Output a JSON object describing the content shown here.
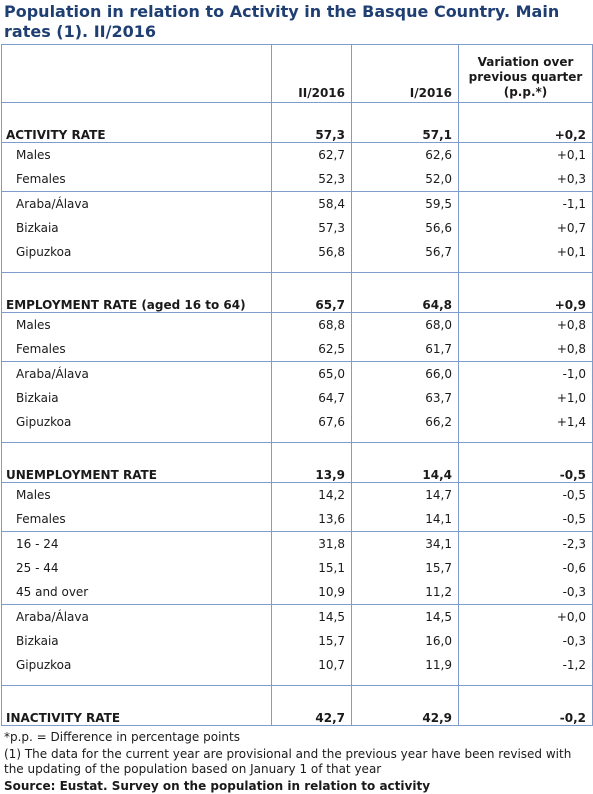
{
  "title": "Population in relation to Activity in the Basque Country. Main rates (1). II/2016",
  "columns": [
    "",
    "II/2016",
    "I/2016",
    "Variation over previous quarter (p.p.*)"
  ],
  "sections": [
    {
      "header": {
        "label": "ACTIVITY RATE",
        "c1": "57,3",
        "c2": "57,1",
        "c3": "+0,2"
      },
      "groups": [
        [
          {
            "label": "Males",
            "c1": "62,7",
            "c2": "62,6",
            "c3": "+0,1"
          },
          {
            "label": "Females",
            "c1": "52,3",
            "c2": "52,0",
            "c3": "+0,3"
          }
        ],
        [
          {
            "label": "Araba/Álava",
            "c1": "58,4",
            "c2": "59,5",
            "c3": "-1,1"
          },
          {
            "label": "Bizkaia",
            "c1": "57,3",
            "c2": "56,6",
            "c3": "+0,7"
          },
          {
            "label": "Gipuzkoa",
            "c1": "56,8",
            "c2": "56,7",
            "c3": "+0,1"
          }
        ]
      ]
    },
    {
      "header": {
        "label": "EMPLOYMENT RATE (aged 16 to 64)",
        "c1": "65,7",
        "c2": "64,8",
        "c3": "+0,9"
      },
      "groups": [
        [
          {
            "label": "Males",
            "c1": "68,8",
            "c2": "68,0",
            "c3": "+0,8"
          },
          {
            "label": "Females",
            "c1": "62,5",
            "c2": "61,7",
            "c3": "+0,8"
          }
        ],
        [
          {
            "label": "Araba/Álava",
            "c1": "65,0",
            "c2": "66,0",
            "c3": "-1,0"
          },
          {
            "label": "Bizkaia",
            "c1": "64,7",
            "c2": "63,7",
            "c3": "+1,0"
          },
          {
            "label": "Gipuzkoa",
            "c1": "67,6",
            "c2": "66,2",
            "c3": "+1,4"
          }
        ]
      ]
    },
    {
      "header": {
        "label": "UNEMPLOYMENT RATE",
        "c1": "13,9",
        "c2": "14,4",
        "c3": "-0,5"
      },
      "groups": [
        [
          {
            "label": "Males",
            "c1": "14,2",
            "c2": "14,7",
            "c3": "-0,5"
          },
          {
            "label": "Females",
            "c1": "13,6",
            "c2": "14,1",
            "c3": "-0,5"
          }
        ],
        [
          {
            "label": "16 - 24",
            "c1": "31,8",
            "c2": "34,1",
            "c3": "-2,3"
          },
          {
            "label": "25 - 44",
            "c1": "15,1",
            "c2": "15,7",
            "c3": "-0,6"
          },
          {
            "label": "45 and over",
            "c1": "10,9",
            "c2": "11,2",
            "c3": "-0,3"
          }
        ],
        [
          {
            "label": "Araba/Álava",
            "c1": "14,5",
            "c2": "14,5",
            "c3": "+0,0"
          },
          {
            "label": "Bizkaia",
            "c1": "15,7",
            "c2": "16,0",
            "c3": "-0,3"
          },
          {
            "label": "Gipuzkoa",
            "c1": "10,7",
            "c2": "11,9",
            "c3": "-1,2"
          }
        ]
      ]
    },
    {
      "header": {
        "label": "INACTIVITY RATE",
        "c1": "42,7",
        "c2": "42,9",
        "c3": "-0,2"
      },
      "groups": []
    }
  ],
  "notes": [
    "*p.p. = Difference in percentage points",
    "(1) The data for the current year are provisional and the previous year have been revised with the updating of the population based on January 1 of that year"
  ],
  "source": "Source: Eustat. Survey on the population in relation to activity"
}
